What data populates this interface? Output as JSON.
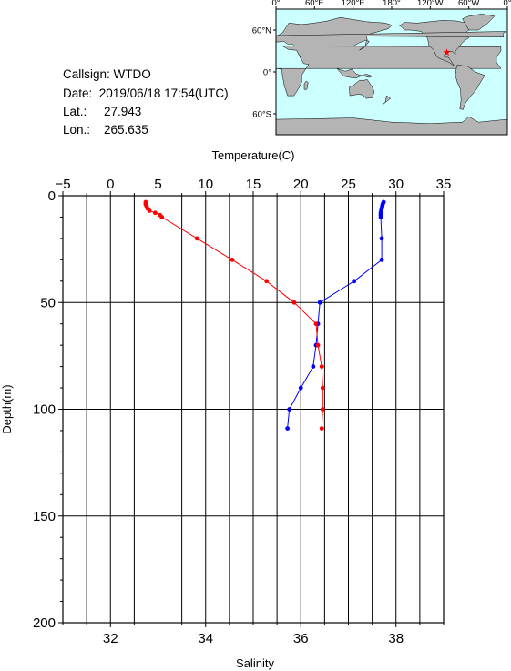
{
  "station": {
    "callsign_label": "Callsign:",
    "callsign": "WTDO",
    "date_label": "Date:",
    "date": "2019/06/18 17:54(UTC)",
    "lat_label": "Lat.:",
    "lat": "27.943",
    "lon_label": "Lon.:",
    "lon": "265.635"
  },
  "map": {
    "top_ticks": [
      "0°",
      "60°E",
      "120°E",
      "180°",
      "120°W",
      "60°W",
      "0°"
    ],
    "left_ticks": [
      "60°N",
      "0°",
      "60°S"
    ],
    "ocean_color": "#ccffff",
    "land_color": "#b4b4b4",
    "marker_color": "#ff0000",
    "marker_lon": 265.635,
    "marker_lat": 27.943
  },
  "chart_data": {
    "type": "line",
    "ylabel": "Depth(m)",
    "top_xlabel": "Temperature(C)",
    "bottom_xlabel": "Salinity",
    "ylim": [
      0,
      200
    ],
    "y_inverted": true,
    "yticks": [
      0,
      50,
      100,
      150,
      200
    ],
    "temperature_xlim": [
      -5,
      35
    ],
    "temperature_ticks": [
      -5,
      0,
      5,
      10,
      15,
      20,
      25,
      30,
      35
    ],
    "salinity_xlim": [
      31,
      39
    ],
    "salinity_ticks": [
      32,
      34,
      36,
      38
    ],
    "grid": true,
    "series": [
      {
        "axis": "temperature",
        "color": "#0000ff",
        "points": [
          {
            "depth": 3,
            "value": 28.7
          },
          {
            "depth": 4,
            "value": 28.6
          },
          {
            "depth": 5,
            "value": 28.55
          },
          {
            "depth": 6,
            "value": 28.5
          },
          {
            "depth": 7,
            "value": 28.45
          },
          {
            "depth": 8,
            "value": 28.4
          },
          {
            "depth": 9,
            "value": 28.4
          },
          {
            "depth": 10,
            "value": 28.4
          },
          {
            "depth": 20,
            "value": 28.5
          },
          {
            "depth": 30,
            "value": 28.5
          },
          {
            "depth": 40,
            "value": 25.6
          },
          {
            "depth": 50,
            "value": 22.0
          },
          {
            "depth": 60,
            "value": 21.8
          },
          {
            "depth": 70,
            "value": 21.6
          },
          {
            "depth": 80,
            "value": 21.3
          },
          {
            "depth": 90,
            "value": 20.0
          },
          {
            "depth": 100,
            "value": 18.8
          },
          {
            "depth": 109,
            "value": 18.6
          }
        ]
      },
      {
        "axis": "salinity",
        "color": "#ff0000",
        "points": [
          {
            "depth": 3,
            "value": 32.74
          },
          {
            "depth": 4,
            "value": 32.74
          },
          {
            "depth": 5,
            "value": 32.76
          },
          {
            "depth": 6,
            "value": 32.78
          },
          {
            "depth": 7,
            "value": 32.82
          },
          {
            "depth": 8,
            "value": 32.94
          },
          {
            "depth": 9,
            "value": 33.04
          },
          {
            "depth": 10,
            "value": 33.08
          },
          {
            "depth": 20,
            "value": 33.82
          },
          {
            "depth": 30,
            "value": 34.56
          },
          {
            "depth": 40,
            "value": 35.28
          },
          {
            "depth": 50,
            "value": 35.86
          },
          {
            "depth": 60,
            "value": 36.32
          },
          {
            "depth": 70,
            "value": 36.36
          },
          {
            "depth": 80,
            "value": 36.44
          },
          {
            "depth": 90,
            "value": 36.46
          },
          {
            "depth": 100,
            "value": 36.46
          },
          {
            "depth": 109,
            "value": 36.44
          }
        ]
      }
    ]
  }
}
